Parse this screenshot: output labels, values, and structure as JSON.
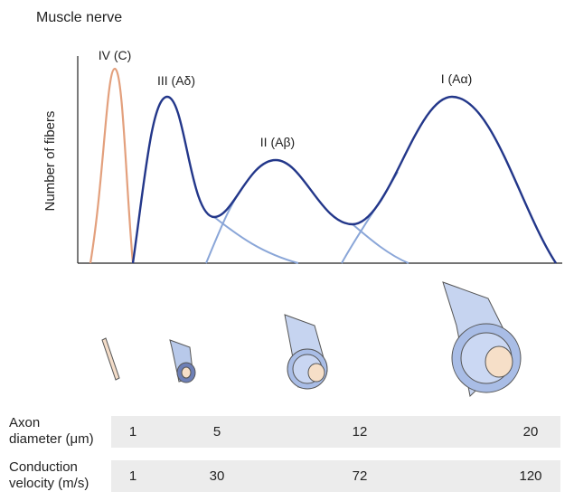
{
  "header": {
    "title": "Muscle nerve"
  },
  "chart": {
    "y_axis_label": "Number of fibers",
    "peaks": [
      {
        "label": "IV (C)"
      },
      {
        "label": "III (Aδ)"
      },
      {
        "label": "II (Aβ)"
      },
      {
        "label": "I (Aα)"
      }
    ]
  },
  "table": {
    "rows": [
      {
        "label": [
          "Axon",
          "diameter (μm)"
        ],
        "values": [
          1,
          5,
          12,
          20
        ]
      },
      {
        "label": [
          "Conduction",
          "velocity (m/s)"
        ],
        "values": [
          1,
          30,
          72,
          120
        ]
      }
    ]
  }
}
